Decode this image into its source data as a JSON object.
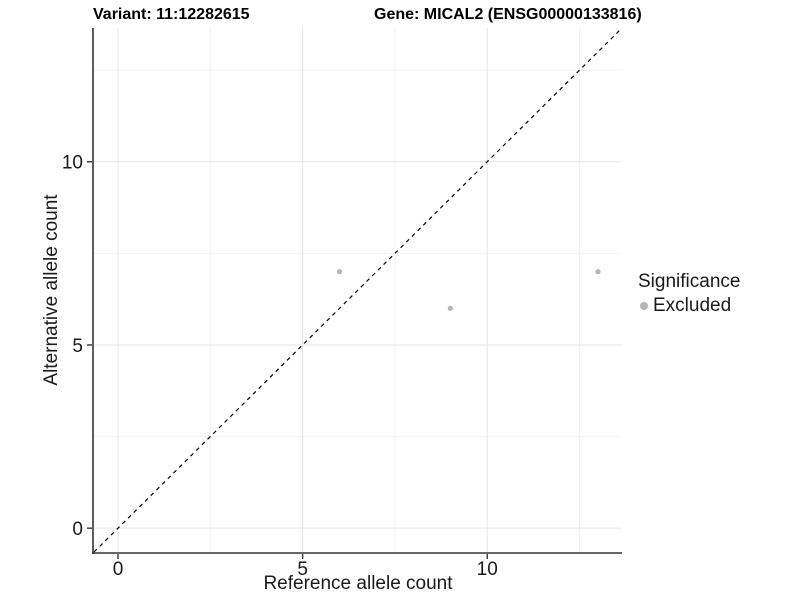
{
  "titles": {
    "variant": "Variant: 11:12282615",
    "gene": "Gene: MICAL2 (ENSG00000133816)"
  },
  "legend": {
    "title": "Significance",
    "items": [
      {
        "label": "Excluded",
        "color": "#b5b5b5"
      }
    ]
  },
  "chart_data": {
    "type": "scatter",
    "title": "",
    "xlabel": "Reference allele count",
    "ylabel": "Alternative allele count",
    "xlim": [
      -0.65,
      13.65
    ],
    "ylim": [
      -0.65,
      13.65
    ],
    "x_ticks": [
      0,
      5,
      10
    ],
    "y_ticks": [
      0,
      5,
      10
    ],
    "x_minor_ticks": [
      2.5,
      7.5,
      12.5
    ],
    "y_minor_ticks": [
      2.5,
      7.5,
      12.5
    ],
    "grid": true,
    "legend_position": "right",
    "series": [
      {
        "name": "Excluded",
        "color": "#b5b5b5",
        "points": [
          {
            "x": 6,
            "y": 7
          },
          {
            "x": 9,
            "y": 6
          },
          {
            "x": 13,
            "y": 7
          }
        ]
      }
    ],
    "reference_line": {
      "style": "dashed",
      "slope": 1,
      "intercept": 0,
      "color": "#000000"
    },
    "colors": {
      "grid_major": "#e6e6e6",
      "grid_minor": "#f2f2f2",
      "axis_line": "#333333",
      "tick_text": "#1a1a1a",
      "background": "#ffffff"
    }
  }
}
